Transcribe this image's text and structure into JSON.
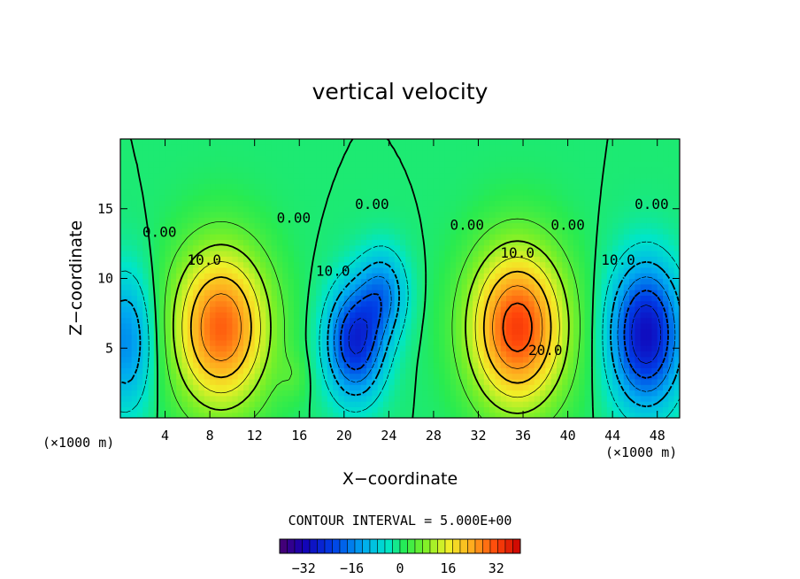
{
  "chart_data": {
    "type": "heatmap",
    "title": "vertical velocity",
    "xlabel": "X−coordinate",
    "ylabel": "Z−coordinate",
    "x_unit": "(×1000 m)",
    "x_unit_right": "(×1000 m)",
    "xlim": [
      0,
      50
    ],
    "ylim": [
      0,
      20
    ],
    "x_ticks": [
      4,
      8,
      12,
      16,
      20,
      24,
      28,
      32,
      36,
      40,
      44,
      48
    ],
    "y_ticks": [
      5,
      10,
      15
    ],
    "contour_interval_text": "CONTOUR INTERVAL = 5.000E+00",
    "contour_labels": [
      {
        "text": "0.00",
        "x": 3.5,
        "y": 13.0
      },
      {
        "text": "10.0",
        "x": 7.5,
        "y": 11.0
      },
      {
        "text": "0.00",
        "x": 15.5,
        "y": 14.0
      },
      {
        "text": "10.0",
        "x": 19.0,
        "y": 10.2
      },
      {
        "text": "0.00",
        "x": 22.5,
        "y": 15.0
      },
      {
        "text": "0.00",
        "x": 31.0,
        "y": 13.5
      },
      {
        "text": "10.0",
        "x": 35.5,
        "y": 11.5
      },
      {
        "text": "0.00",
        "x": 40.0,
        "y": 13.5
      },
      {
        "text": "20.0",
        "x": 38.0,
        "y": 4.5
      },
      {
        "text": "10.0",
        "x": 44.5,
        "y": 11.0
      },
      {
        "text": "0.00",
        "x": 47.5,
        "y": 15.0
      }
    ],
    "field_features": [
      {
        "x": 9.0,
        "z": 6.5,
        "sx": 3.0,
        "sz": 4.0,
        "amp": 30
      },
      {
        "x": 35.5,
        "z": 6.5,
        "sx": 3.0,
        "sz": 4.0,
        "amp": 33
      },
      {
        "x": 21.0,
        "z": 5.5,
        "sx": 1.8,
        "sz": 2.8,
        "amp": -26
      },
      {
        "x": 23.5,
        "z": 9.0,
        "sx": 1.5,
        "sz": 2.2,
        "amp": -14
      },
      {
        "x": 47.0,
        "z": 6.0,
        "sx": 2.2,
        "sz": 3.5,
        "amp": -30
      },
      {
        "x": 0.5,
        "z": 5.5,
        "sx": 1.8,
        "sz": 3.5,
        "amp": -15
      },
      {
        "x": 15.5,
        "z": 3.0,
        "sx": 0.9,
        "sz": 1.2,
        "amp": 3
      }
    ],
    "colorbar": {
      "ticks": [
        "−32",
        "−16",
        "0",
        "16",
        "32"
      ],
      "tick_values": [
        -32,
        -16,
        0,
        16,
        32
      ],
      "range": [
        -40,
        40
      ]
    },
    "grid": false
  }
}
